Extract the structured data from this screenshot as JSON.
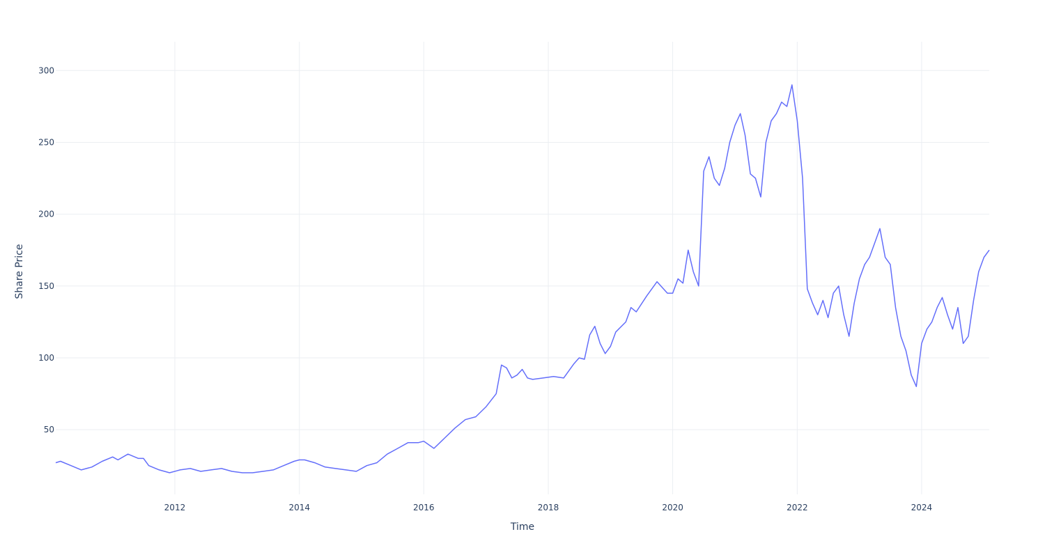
{
  "chart_data": {
    "type": "line",
    "xlabel": "Time",
    "ylabel": "Share Price",
    "x_range": [
      "2010-02-01",
      "2025-02-01"
    ],
    "y_range": [
      5,
      320
    ],
    "x_ticks": [
      {
        "value": "2012-01-01",
        "label": "2012"
      },
      {
        "value": "2014-01-01",
        "label": "2014"
      },
      {
        "value": "2016-01-01",
        "label": "2016"
      },
      {
        "value": "2018-01-01",
        "label": "2018"
      },
      {
        "value": "2020-01-01",
        "label": "2020"
      },
      {
        "value": "2022-01-01",
        "label": "2022"
      },
      {
        "value": "2024-01-01",
        "label": "2024"
      }
    ],
    "y_ticks": [
      {
        "value": 50,
        "label": "50"
      },
      {
        "value": 100,
        "label": "100"
      },
      {
        "value": 150,
        "label": "150"
      },
      {
        "value": 200,
        "label": "200"
      },
      {
        "value": 250,
        "label": "250"
      },
      {
        "value": 300,
        "label": "300"
      }
    ],
    "grid": true,
    "legend": "none",
    "line_color": "#636efa",
    "series": [
      {
        "x": [
          "2010-02-01",
          "2010-03-01",
          "2010-05-01",
          "2010-07-01",
          "2010-09-01",
          "2010-11-01",
          "2011-01-01",
          "2011-02-01",
          "2011-04-01",
          "2011-06-01",
          "2011-07-01",
          "2011-08-01",
          "2011-10-01",
          "2011-12-01",
          "2012-02-01",
          "2012-04-01",
          "2012-06-01",
          "2012-08-01",
          "2012-10-01",
          "2012-12-01",
          "2013-02-01",
          "2013-04-01",
          "2013-06-01",
          "2013-08-01",
          "2013-10-01",
          "2013-12-01",
          "2014-01-01",
          "2014-02-01",
          "2014-04-01",
          "2014-06-01",
          "2014-08-01",
          "2014-10-01",
          "2014-12-01",
          "2015-02-01",
          "2015-04-01",
          "2015-06-01",
          "2015-08-01",
          "2015-10-01",
          "2015-12-01",
          "2016-01-01",
          "2016-03-01",
          "2016-05-01",
          "2016-07-01",
          "2016-09-01",
          "2016-11-01",
          "2017-01-01",
          "2017-03-01",
          "2017-04-01",
          "2017-05-01",
          "2017-06-01",
          "2017-07-01",
          "2017-08-01",
          "2017-09-01",
          "2017-10-01",
          "2017-12-01",
          "2018-02-01",
          "2018-04-01",
          "2018-06-01",
          "2018-07-01",
          "2018-08-01",
          "2018-09-01",
          "2018-10-01",
          "2018-11-01",
          "2018-12-01",
          "2019-01-01",
          "2019-02-01",
          "2019-04-01",
          "2019-05-01",
          "2019-06-01",
          "2019-08-01",
          "2019-10-01",
          "2019-12-01",
          "2020-01-01",
          "2020-02-01",
          "2020-03-01",
          "2020-04-01",
          "2020-05-01",
          "2020-06-01",
          "2020-07-01",
          "2020-08-01",
          "2020-09-01",
          "2020-10-01",
          "2020-11-01",
          "2020-12-01",
          "2021-01-01",
          "2021-02-01",
          "2021-03-01",
          "2021-04-01",
          "2021-05-01",
          "2021-06-01",
          "2021-07-01",
          "2021-08-01",
          "2021-09-01",
          "2021-10-01",
          "2021-11-01",
          "2021-12-01",
          "2022-01-01",
          "2022-02-01",
          "2022-03-01",
          "2022-04-01",
          "2022-05-01",
          "2022-06-01",
          "2022-07-01",
          "2022-08-01",
          "2022-09-01",
          "2022-10-01",
          "2022-11-01",
          "2022-12-01",
          "2023-01-01",
          "2023-02-01",
          "2023-03-01",
          "2023-04-01",
          "2023-05-01",
          "2023-06-01",
          "2023-07-01",
          "2023-08-01",
          "2023-09-01",
          "2023-10-01",
          "2023-11-01",
          "2023-12-01",
          "2024-01-01",
          "2024-02-01",
          "2024-03-01",
          "2024-04-01",
          "2024-05-01",
          "2024-06-01",
          "2024-07-01",
          "2024-08-01",
          "2024-09-01",
          "2024-10-01",
          "2024-11-01",
          "2024-12-01",
          "2025-01-01",
          "2025-02-01"
        ],
        "y": [
          27,
          28,
          25,
          22,
          24,
          28,
          31,
          29,
          33,
          30,
          30,
          25,
          22,
          20,
          22,
          23,
          21,
          22,
          23,
          21,
          20,
          20,
          21,
          22,
          25,
          28,
          29,
          29,
          27,
          24,
          23,
          22,
          21,
          25,
          27,
          33,
          37,
          41,
          41,
          42,
          37,
          44,
          51,
          57,
          59,
          66,
          75,
          95,
          93,
          86,
          88,
          92,
          86,
          85,
          86,
          87,
          86,
          96,
          100,
          99,
          116,
          122,
          110,
          103,
          108,
          118,
          125,
          135,
          132,
          143,
          153,
          145,
          145,
          155,
          152,
          175,
          160,
          150,
          230,
          240,
          225,
          220,
          232,
          250,
          262,
          270,
          255,
          228,
          225,
          212,
          250,
          265,
          270,
          278,
          275,
          290,
          265,
          225,
          148,
          138,
          130,
          140,
          128,
          145,
          150,
          130,
          115,
          138,
          155,
          165,
          170,
          180,
          190,
          170,
          165,
          135,
          115,
          105,
          88,
          80,
          110,
          120,
          125,
          135,
          142,
          130,
          120,
          135,
          110,
          115,
          140,
          160,
          170,
          175
        ]
      }
    ]
  }
}
